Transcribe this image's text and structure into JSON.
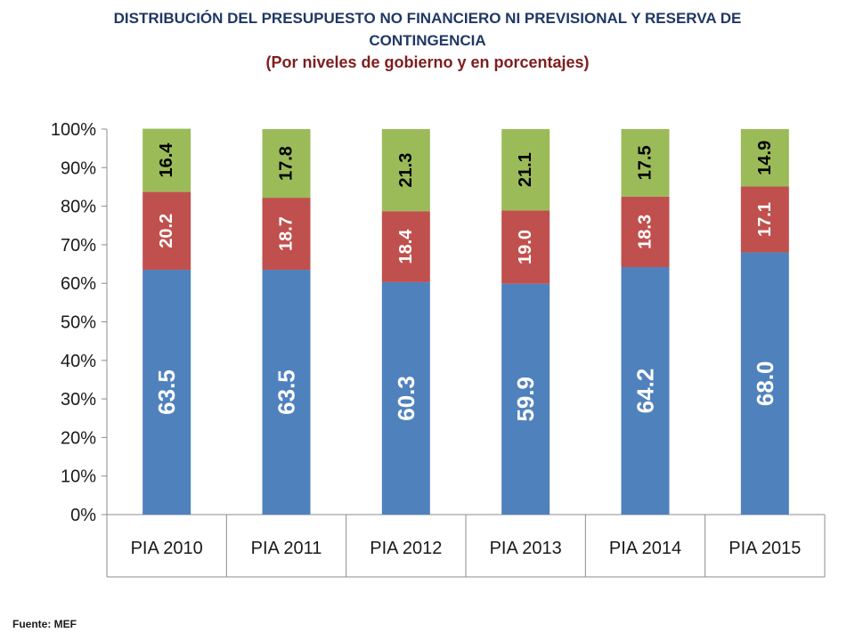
{
  "title": {
    "line1": "DISTRIBUCIÓN DEL PRESUPUESTO  NO FINANCIERO NI PREVISIONAL  Y RESERVA DE",
    "line2": "CONTINGENCIA",
    "line3": "(Por niveles de gobierno y en porcentajes)"
  },
  "source": "Fuente: MEF",
  "colors": {
    "series1": "#4f81bd",
    "series2": "#c0504d",
    "series3": "#9bbb59",
    "label_series1": "#ffffff",
    "label_series2": "#ffffff",
    "label_series3": "#000000"
  },
  "chart_data": {
    "type": "bar",
    "stacked": true,
    "categories": [
      "PIA 2010",
      "PIA 2011",
      "PIA 2012",
      "PIA 2013",
      "PIA 2014",
      "PIA 2015"
    ],
    "series": [
      {
        "values": [
          63.5,
          63.5,
          60.3,
          59.9,
          64.2,
          68.0
        ],
        "labels": [
          "63.5",
          "63.5",
          "60.3",
          "59.9",
          "64.2",
          "68.0"
        ]
      },
      {
        "values": [
          20.2,
          18.7,
          18.4,
          19.0,
          18.3,
          17.1
        ],
        "labels": [
          "20.2",
          "18.7",
          "18.4",
          "19.0",
          "18.3",
          "17.1"
        ]
      },
      {
        "values": [
          16.4,
          17.8,
          21.3,
          21.1,
          17.5,
          14.9
        ],
        "labels": [
          "16.4",
          "17.8",
          "21.3",
          "21.1",
          "17.5",
          "14.9"
        ]
      }
    ],
    "ylim": [
      0,
      100
    ],
    "yticks": [
      "0%",
      "10%",
      "20%",
      "30%",
      "40%",
      "50%",
      "60%",
      "70%",
      "80%",
      "90%",
      "100%"
    ],
    "grid": false,
    "legend": "none"
  }
}
